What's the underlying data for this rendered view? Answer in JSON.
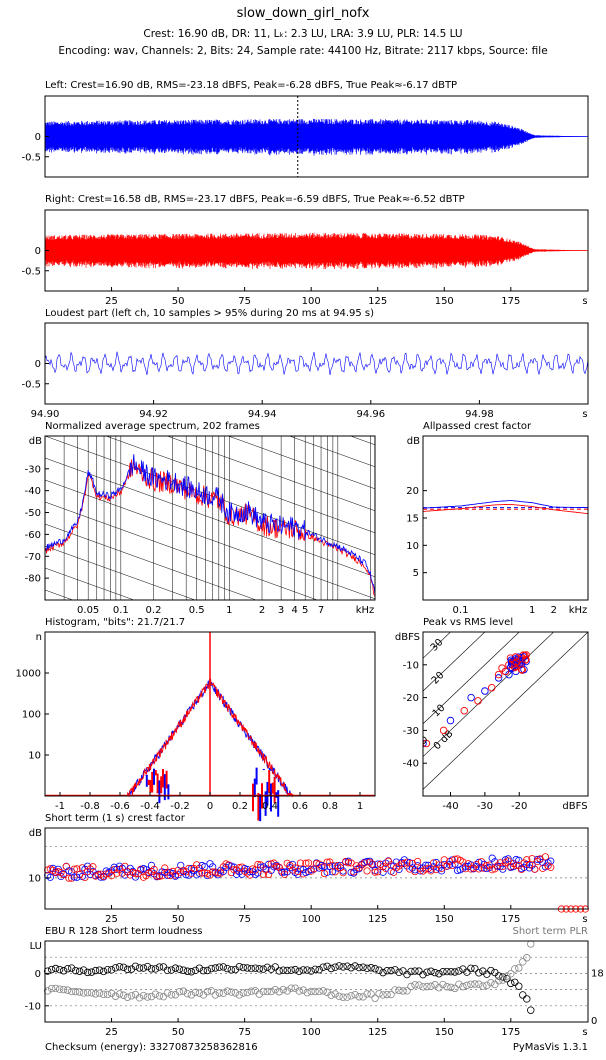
{
  "header": {
    "title": "slow_down_girl_nofx",
    "stats_line": "Crest: 16.90 dB,  DR: 11,  Lₖ: 2.3 LU,  LRA: 3.9 LU,  PLR: 14.5 LU",
    "encoding_line": "Encoding: wav,  Channels: 2,  Bits: 24,  Sample rate: 44100 Hz,  Bitrate: 2117 kbps,  Source: file"
  },
  "footer": {
    "checksum": "Checksum (energy): 33270873258362816",
    "version": "PyMasVis 1.3.1"
  },
  "colors": {
    "left": "#0000ff",
    "right": "#ff0000",
    "mix": "#9b1f6e",
    "gray": "#777777"
  },
  "chart_data": [
    {
      "type": "line",
      "id": "left_waveform",
      "title": "Left: Crest=16.90 dB, RMS=-23.18 dBFS, Peak=-6.28 dBFS, True Peak≈-6.17 dBTP",
      "y_ticks": [
        "0",
        "-0.5"
      ],
      "x_unit": "s",
      "xlim": [
        0,
        204
      ],
      "ylim": [
        -1,
        1
      ],
      "envelope": {
        "t": [
          0,
          20,
          60,
          100,
          140,
          160,
          170,
          178,
          184,
          204
        ],
        "amp": [
          0.34,
          0.36,
          0.38,
          0.4,
          0.38,
          0.37,
          0.33,
          0.2,
          0.03,
          0.0
        ]
      },
      "marker_x": 94.95
    },
    {
      "type": "line",
      "id": "right_waveform",
      "title": "Right: Crest=16.58 dB, RMS=-23.17 dBFS, Peak=-6.59 dBFS, True Peak≈-6.52 dBTP",
      "y_ticks": [
        "0",
        "-0.5"
      ],
      "x_ticks": [
        "25",
        "50",
        "75",
        "100",
        "125",
        "150",
        "175"
      ],
      "x_unit": "s",
      "xlim": [
        0,
        204
      ],
      "ylim": [
        -1,
        1
      ],
      "envelope": {
        "t": [
          0,
          20,
          60,
          100,
          140,
          160,
          170,
          178,
          184,
          204
        ],
        "amp": [
          0.34,
          0.36,
          0.38,
          0.4,
          0.38,
          0.37,
          0.33,
          0.2,
          0.03,
          0.0
        ]
      }
    },
    {
      "type": "line",
      "id": "loudest_part",
      "title": "Loudest part (left ch, 10 samples > 95% during 20 ms at 94.95 s)",
      "y_ticks": [
        "0",
        "-0.5"
      ],
      "x_ticks": [
        "94.90",
        "94.92",
        "94.94",
        "94.96",
        "94.98"
      ],
      "x_unit": "s",
      "xlim": [
        94.9,
        95.0
      ],
      "ylim": [
        -1,
        1
      ]
    },
    {
      "type": "line",
      "id": "spectrum",
      "title": "Normalized average spectrum, 202 frames",
      "y_unit": "dB",
      "x_unit": "kHz",
      "y_ticks": [
        "-30",
        "-40",
        "-50",
        "-60",
        "-70",
        "-80"
      ],
      "x_ticks": [
        "0.05",
        "0.1",
        "0.2",
        "0.5",
        "1",
        "2",
        "3",
        "4",
        "5",
        "7"
      ],
      "xlim_khz": [
        0.02,
        22
      ],
      "ylim": [
        -90,
        -15
      ],
      "series": [
        {
          "khz": [
            0.02,
            0.03,
            0.04,
            0.045,
            0.05,
            0.055,
            0.06,
            0.08,
            0.1,
            0.13,
            0.15,
            0.2,
            0.3,
            0.5,
            0.8,
            1,
            1.5,
            2,
            3,
            4,
            6,
            8,
            10,
            14,
            18,
            20,
            22
          ],
          "db": [
            -67,
            -63,
            -55,
            -45,
            -32,
            -36,
            -42,
            -43,
            -40,
            -28,
            -31,
            -35,
            -36,
            -41,
            -44,
            -51,
            -50,
            -55,
            -57,
            -57,
            -61,
            -64,
            -66,
            -70,
            -74,
            -79,
            -88
          ]
        }
      ]
    },
    {
      "type": "line",
      "id": "allpassed_crest",
      "title": "Allpassed crest factor",
      "y_unit": "dB",
      "x_unit": "kHz",
      "y_ticks": [
        "20",
        "15",
        "10",
        "5"
      ],
      "x_ticks": [
        "0.1",
        "1",
        "2"
      ],
      "xlim_khz": [
        0.03,
        6
      ],
      "ylim": [
        0,
        30
      ],
      "series": [
        {
          "name": "left",
          "khz": [
            0.03,
            0.1,
            0.3,
            0.5,
            1,
            2,
            6
          ],
          "db": [
            16.8,
            17.2,
            18,
            18.2,
            17.8,
            17,
            16.9
          ]
        },
        {
          "name": "right",
          "khz": [
            0.03,
            0.1,
            0.3,
            0.5,
            1,
            2,
            6
          ],
          "db": [
            16.2,
            16.7,
            17.4,
            17.5,
            17.1,
            16.5,
            15.8
          ]
        }
      ],
      "reference_lines": [
        16.9,
        16.6
      ]
    },
    {
      "type": "bar",
      "id": "histogram",
      "title": "Histogram, \"bits\": 21.7/21.7",
      "y_label": "n",
      "x_ticks": [
        "-1",
        "-0.8",
        "-0.6",
        "-0.4",
        "-0.2",
        "0",
        "0.2",
        "0.4",
        "0.6",
        "0.8",
        "1"
      ],
      "y_ticks": [
        "1000",
        "100",
        "10"
      ],
      "xlim": [
        -1.1,
        1.1
      ],
      "ylim_log": [
        1,
        10000
      ],
      "peak_count": 600,
      "decay_scale": 0.085
    },
    {
      "type": "scatter",
      "id": "peak_vs_rms",
      "title": "Peak vs RMS level",
      "y_unit": "dBFS",
      "x_unit": "dBFS",
      "y_ticks": [
        "-10",
        "-20",
        "-30",
        "-40"
      ],
      "x_ticks": [
        "-40",
        "-30",
        "-20"
      ],
      "xlim": [
        -48,
        0
      ],
      "ylim": [
        -50,
        0
      ],
      "crest_labels": [
        "40",
        "30",
        "20",
        "10",
        "0 dB"
      ],
      "series": [
        {
          "name": "left",
          "points": [
            [
              -48,
              -34
            ],
            [
              -40,
              -27
            ],
            [
              -34,
              -20
            ],
            [
              -30,
              -18
            ],
            [
              -26,
              -14
            ],
            [
              -24,
              -12
            ],
            [
              -22,
              -11
            ],
            [
              -20,
              -10
            ],
            [
              -18,
              -9
            ],
            [
              -21,
              -12
            ],
            [
              -23,
              -13
            ]
          ]
        },
        {
          "name": "right",
          "points": [
            [
              -47,
              -34
            ],
            [
              -42,
              -30
            ],
            [
              -36,
              -24
            ],
            [
              -32,
              -21
            ],
            [
              -28,
              -17
            ],
            [
              -26,
              -13
            ],
            [
              -24,
              -12
            ],
            [
              -22,
              -10
            ],
            [
              -20,
              -8
            ],
            [
              -19,
              -8
            ],
            [
              -21,
              -9
            ],
            [
              -25,
              -11
            ],
            [
              -23,
              -10
            ],
            [
              -18,
              -7
            ]
          ]
        },
        {
          "name": "black",
          "points": [
            [
              -48,
              -33
            ]
          ]
        }
      ]
    },
    {
      "type": "scatter",
      "id": "short_term_crest",
      "title": "Short term (1 s) crest factor",
      "y_unit": "dB",
      "y_ticks": [
        "10"
      ],
      "x_ticks": [
        "25",
        "50",
        "75",
        "100",
        "125",
        "150",
        "175"
      ],
      "x_unit": "s",
      "xlim": [
        0,
        204
      ],
      "ylim": [
        5,
        18
      ],
      "dashed_lines": [
        10,
        15
      ],
      "trend": {
        "t": [
          0,
          100,
          190
        ],
        "db": [
          10.8,
          11.6,
          12.4
        ]
      }
    },
    {
      "type": "scatter",
      "id": "ebu_short_term",
      "title": "EBU R 128 Short term loudness",
      "title_right": "Short term PLR",
      "y_unit": "LU",
      "y_ticks": [
        "0",
        "-10"
      ],
      "x_ticks": [
        "25",
        "50",
        "75",
        "100",
        "125",
        "150",
        "175"
      ],
      "x_unit": "s",
      "right_ticks": [
        "18",
        "0"
      ],
      "xlim": [
        0,
        204
      ],
      "ylim": [
        -15,
        10
      ],
      "dashed_lines": [
        10,
        5,
        0,
        -5,
        -10
      ],
      "series": [
        {
          "name": "loudness",
          "t": [
            1,
            20,
            35,
            55,
            75,
            95,
            115,
            125,
            140,
            160,
            170,
            174,
            178,
            180,
            182,
            183
          ],
          "lu": [
            1,
            1,
            2,
            1,
            2,
            1,
            2,
            1,
            0,
            1,
            0,
            -2,
            -4,
            -7,
            -10,
            -14
          ]
        },
        {
          "name": "plr",
          "t": [
            1,
            20,
            35,
            55,
            75,
            95,
            115,
            125,
            140,
            160,
            170,
            174,
            178,
            180,
            182,
            183
          ],
          "lu": [
            -5,
            -6,
            -7,
            -6,
            -6,
            -5,
            -7,
            -7,
            -4,
            -4,
            -3,
            -1,
            2,
            4,
            7,
            12
          ]
        }
      ]
    }
  ]
}
